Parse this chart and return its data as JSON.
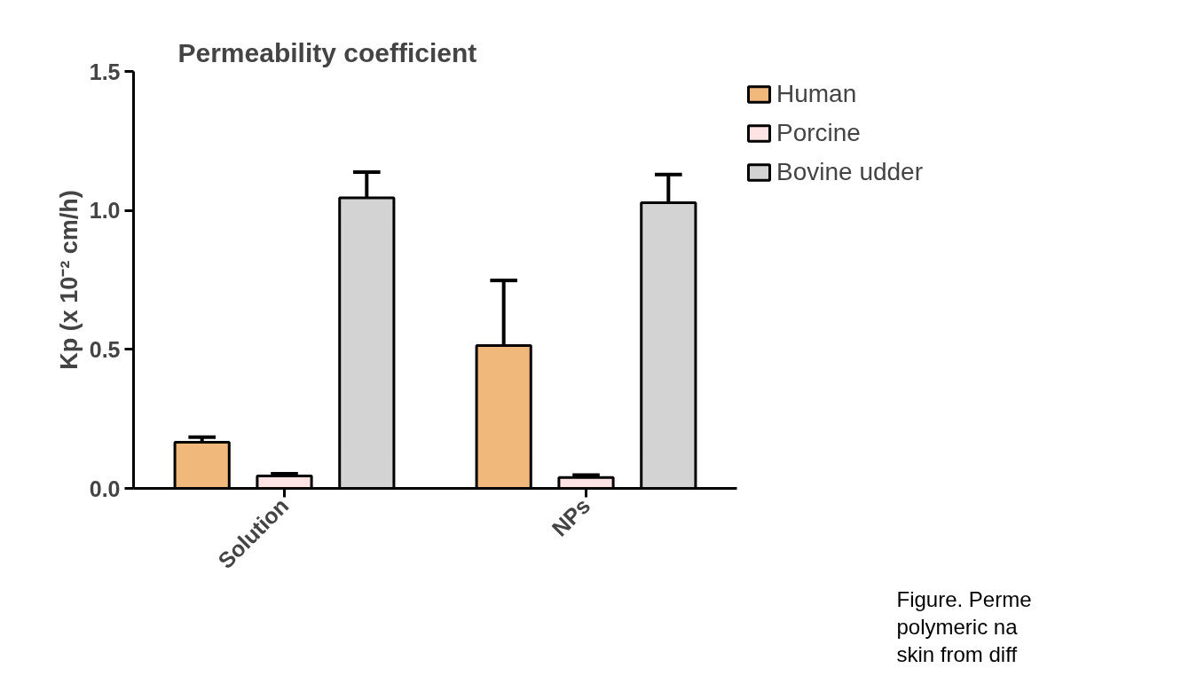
{
  "chart_data": {
    "type": "bar",
    "title": "Permeability coefficient",
    "ylabel": "Kp (x 10⁻² cm/h)",
    "categories": [
      "Solution",
      "NPs"
    ],
    "series": [
      {
        "name": "Human",
        "color": "#f0b87b",
        "values": [
          0.166,
          0.514
        ],
        "errors": [
          [
            0.166,
            0.184
          ],
          [
            0.514,
            0.748
          ]
        ]
      },
      {
        "name": "Porcine",
        "color": "#fde3e3",
        "values": [
          0.045,
          0.039
        ],
        "errors": [
          [
            0.045,
            0.053
          ],
          [
            0.039,
            0.048
          ]
        ]
      },
      {
        "name": "Bovine udder",
        "color": "#d3d3d3",
        "values": [
          1.045,
          1.028
        ],
        "errors": [
          [
            1.045,
            1.138
          ],
          [
            1.028,
            1.129
          ]
        ]
      }
    ],
    "ylim": [
      0,
      1.5
    ],
    "yticks": [
      {
        "value": 0,
        "label": "0.0"
      },
      {
        "value": 0.5,
        "label": "0.5"
      },
      {
        "value": 1,
        "label": "1.0"
      },
      {
        "value": 1.5,
        "label": "1.5"
      }
    ],
    "grid": false,
    "legend": "right",
    "annotations": [
      "Figure. Perme",
      "polymeric na",
      "skin from diff"
    ]
  }
}
